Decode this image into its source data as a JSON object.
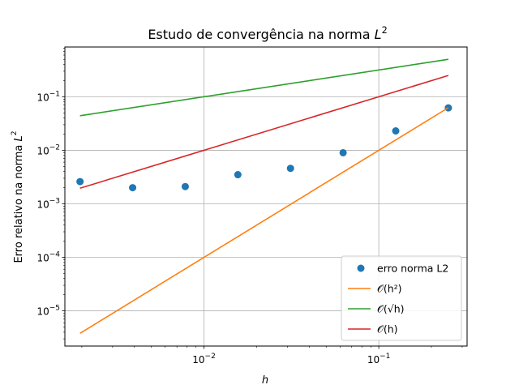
{
  "chart_data": {
    "type": "line",
    "title": "Estudo de convergência na norma L²",
    "xlabel": "h",
    "ylabel": "Erro relativo na norma L²",
    "xscale": "log",
    "yscale": "log",
    "xlim": [
      0.0016,
      0.32
    ],
    "ylim": [
      2.2e-06,
      0.85
    ],
    "grid": true,
    "legend_position": "lower-right",
    "x_ticks": [
      {
        "value": 0.01,
        "base": "10",
        "exp": "−2"
      },
      {
        "value": 0.1,
        "base": "10",
        "exp": "−1"
      }
    ],
    "y_ticks": [
      {
        "value": 1e-05,
        "base": "10",
        "exp": "−5"
      },
      {
        "value": 0.0001,
        "base": "10",
        "exp": "−4"
      },
      {
        "value": 0.001,
        "base": "10",
        "exp": "−3"
      },
      {
        "value": 0.01,
        "base": "10",
        "exp": "−2"
      },
      {
        "value": 0.1,
        "base": "10",
        "exp": "−1"
      }
    ],
    "series": [
      {
        "name": "erro norma L2",
        "kind": "scatter",
        "color": "#1f77b4",
        "x": [
          0.001953125,
          0.00390625,
          0.0078125,
          0.015625,
          0.03125,
          0.0625,
          0.125,
          0.25
        ],
        "y": [
          0.0026,
          0.002,
          0.0021,
          0.0035,
          0.0046,
          0.009,
          0.023,
          0.062
        ]
      },
      {
        "name": "𝒪(h²)",
        "kind": "line",
        "color": "#ff7f0e",
        "x": [
          0.001953125,
          0.25
        ],
        "y": [
          3.8e-06,
          0.0625
        ]
      },
      {
        "name": "𝒪(√h)",
        "kind": "line",
        "color": "#2ca02c",
        "x": [
          0.001953125,
          0.25
        ],
        "y": [
          0.0442,
          0.5
        ]
      },
      {
        "name": "𝒪(h)",
        "kind": "line",
        "color": "#d62728",
        "x": [
          0.001953125,
          0.25
        ],
        "y": [
          0.001953125,
          0.25
        ]
      }
    ]
  }
}
